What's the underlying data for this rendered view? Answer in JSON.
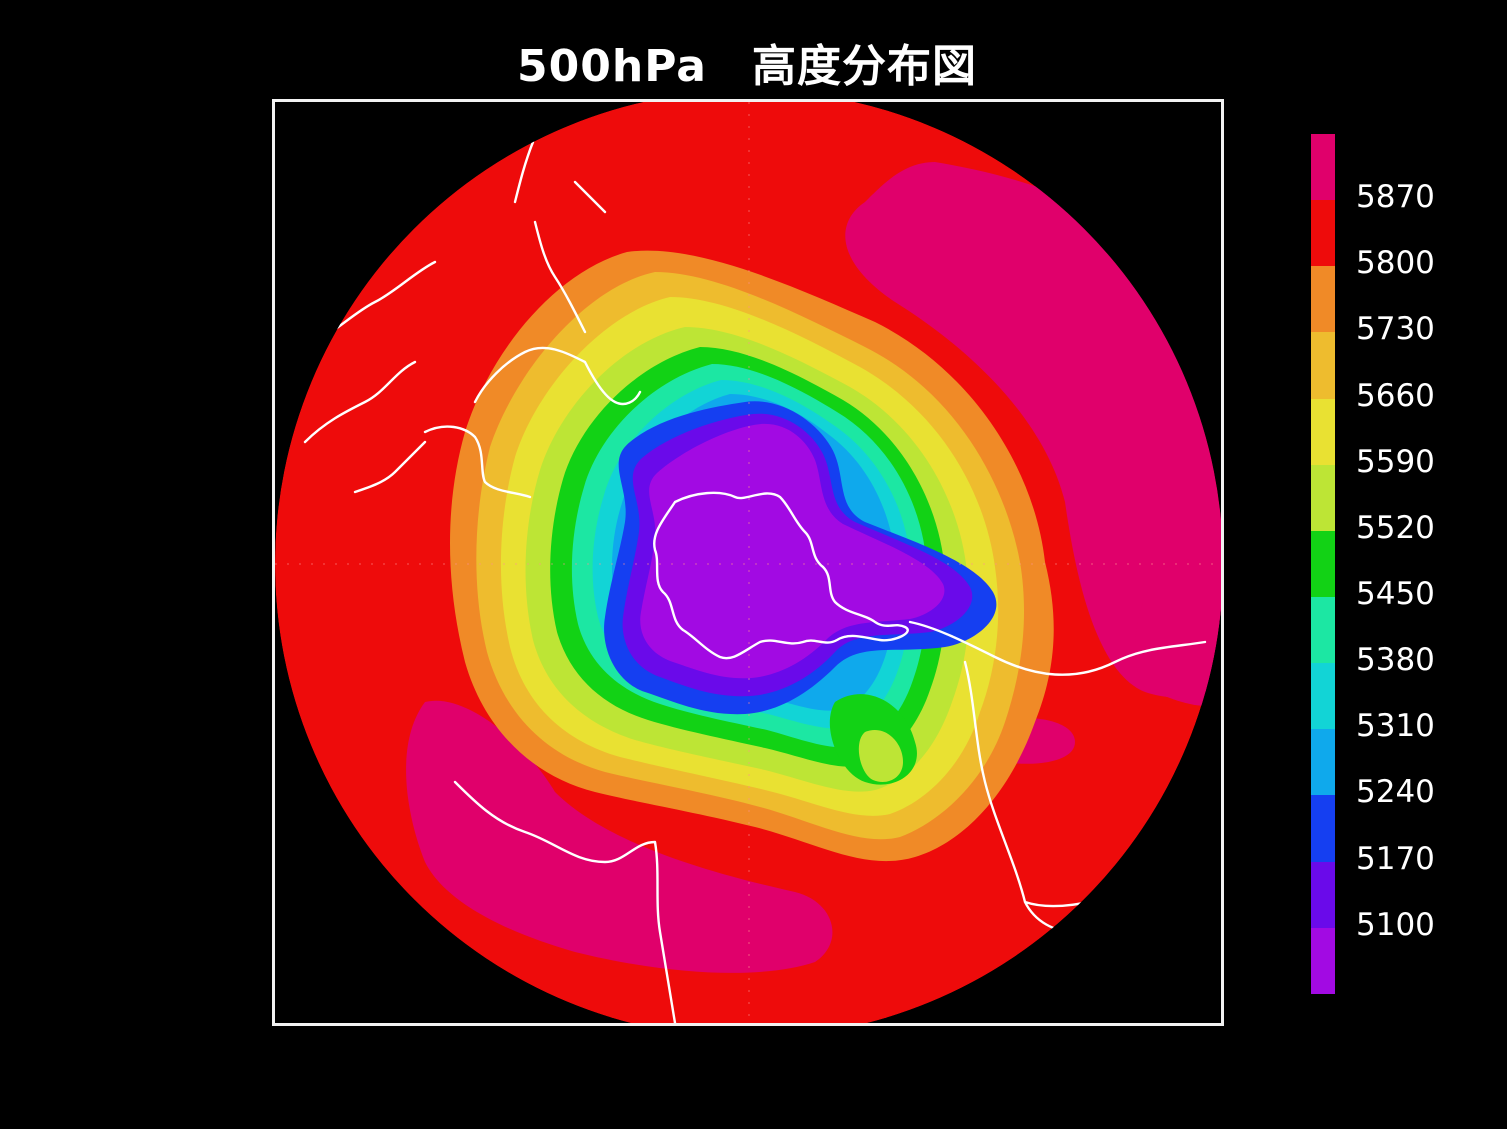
{
  "title": "500hPa　高度分布図",
  "legend": {
    "labels": [
      "5870",
      "5800",
      "5730",
      "5660",
      "5590",
      "5520",
      "5450",
      "5380",
      "5310",
      "5240",
      "5170",
      "5100"
    ],
    "bands": [
      "#e0006b",
      "#ee0b0b",
      "#f08a27",
      "#eebc2e",
      "#e9e132",
      "#bde535",
      "#12d215",
      "#1ce7a3",
      "#12d4d6",
      "#0fa9ec",
      "#153ff1",
      "#6a0aea",
      "#a20ae3"
    ]
  },
  "map": {
    "background": "#ee0b0b",
    "coastline_color": "#ffffff"
  }
}
